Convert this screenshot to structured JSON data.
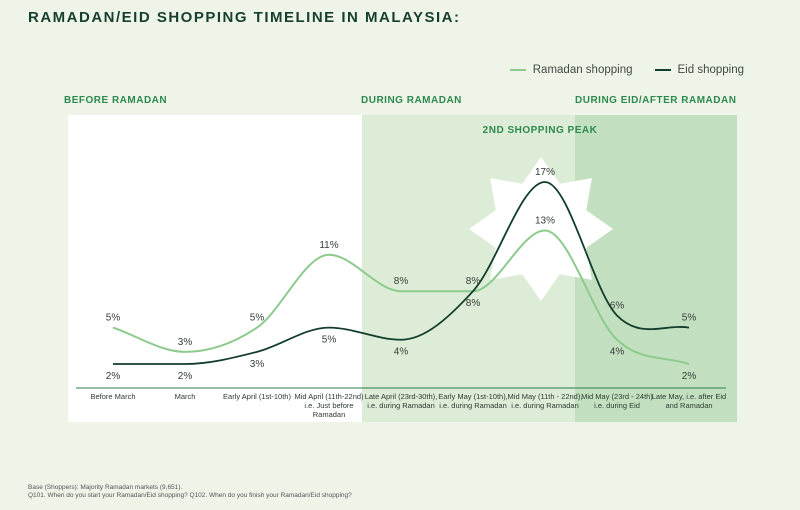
{
  "title": "RAMADAN/EID SHOPPING TIMELINE IN MALAYSIA:",
  "phases": {
    "before": "BEFORE RAMADAN",
    "during": "DURING RAMADAN",
    "after": "DURING EID/AFTER RAMADAN",
    "peak": "2ND SHOPPING PEAK"
  },
  "legend": {
    "ramadan": "Ramadan shopping",
    "eid": "Eid shopping"
  },
  "footnote": {
    "line1": "Base (Shoppers): Majority Ramadan markets (9,651).",
    "line2": "Q101. When do you start your Ramadan/Eid shopping? Q102. When do you finish your Ramadan/Eid shopping?"
  },
  "colors": {
    "ramadan": "#8dca8d",
    "eid": "#123d2c",
    "during_bg": "#dcecd6",
    "after_bg": "#c2e0bf",
    "phase_text": "#2d8a4e"
  },
  "chart_data": {
    "type": "line",
    "categories": [
      "Before March",
      "March",
      "Early April (1st-10th)",
      "Mid April (11th-22nd) i.e. Just before Ramadan",
      "Late April (23rd-30th), i.e. during Ramadan",
      "Early May (1st-10th), i.e. during Ramadan",
      "Mid May (11th - 22nd), i.e. during Ramadan",
      "Mid May (23rd - 24th) i.e. during Eid",
      "Late May, i.e. after Eid and Ramadan"
    ],
    "series": [
      {
        "name": "Ramadan shopping",
        "values": [
          5,
          3,
          5,
          11,
          8,
          8,
          13,
          4,
          2
        ],
        "labels": [
          "5%",
          "3%",
          "5%",
          "11%",
          "8%",
          "8%",
          "13%",
          "4%",
          "2%"
        ]
      },
      {
        "name": "Eid shopping",
        "values": [
          2,
          2,
          3,
          5,
          4,
          8,
          17,
          6,
          5
        ],
        "labels": [
          "2%",
          "2%",
          "3%",
          "5%",
          "4%",
          "8%",
          "17%",
          "6%",
          "5%"
        ]
      }
    ],
    "ylim": [
      0,
      17
    ],
    "grid": false,
    "legend_position": "top-right"
  }
}
